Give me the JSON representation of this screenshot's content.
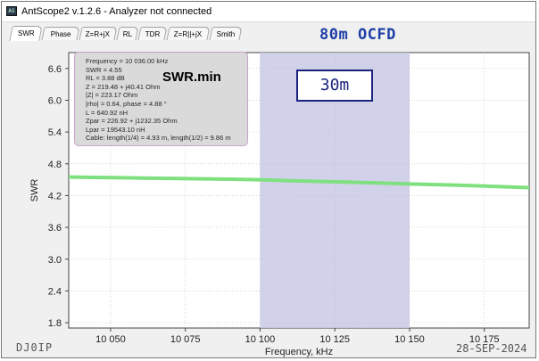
{
  "window": {
    "title": "AntScope2 v.1.2.6 - Analyzer not connected",
    "icon": "app-icon",
    "icon_text": "AS"
  },
  "tabs": [
    {
      "label": "SWR",
      "active": true
    },
    {
      "label": "Phase",
      "active": false
    },
    {
      "label": "Z=R+jX",
      "active": false
    },
    {
      "label": "RL",
      "active": false
    },
    {
      "label": "TDR",
      "active": false
    },
    {
      "label": "Z=R||+jX",
      "active": false
    },
    {
      "label": "Smith",
      "active": false
    }
  ],
  "overlay_title": "80m OCFD",
  "info": {
    "lines": [
      "Frequency = 10 036.00 kHz",
      "SWR = 4.55",
      "RL = 3.88 dB",
      "Z = 219.48 + j40.41 Ohm",
      "|Z| = 223.17 Ohm",
      "|rho| = 0.64, phase = 4.88 °",
      "L = 640.92 nH",
      "Zpar = 226.92 + j1232.35 Ohm",
      "Lpar = 19543.10 nH",
      "Cable: length(1/4) = 4.93 m, length(1/2) = 9.86 m"
    ]
  },
  "swr_min_label": "SWR.min",
  "band_label": "30m",
  "callsign": "DJ0IP",
  "date": "28-SEP-2024",
  "colors": {
    "trace": "#7fe07f",
    "band": "#c9c9e6",
    "band_label": "#1a237e",
    "title": "#1f3fa6"
  },
  "chart_data": {
    "type": "line",
    "xlabel": "Frequency, kHz",
    "ylabel": "SWR",
    "xlim": [
      10036,
      10190
    ],
    "ylim": [
      1.7,
      6.9
    ],
    "xticks": [
      10050,
      10075,
      10100,
      10125,
      10150,
      10175
    ],
    "xtick_labels": [
      "10 050",
      "10 075",
      "10 100",
      "10 125",
      "10 150",
      "10 175"
    ],
    "yticks": [
      1.8,
      2.4,
      3.0,
      3.6,
      4.2,
      4.8,
      5.4,
      6.0,
      6.6
    ],
    "ytick_labels": [
      "1.8",
      "2.4",
      "3.0",
      "3.6",
      "4.2",
      "4.8",
      "5.4",
      "6.0",
      "6.6"
    ],
    "grid": true,
    "band": {
      "from": 10100,
      "to": 10150
    },
    "series": [
      {
        "x": [
          10036,
          10050,
          10060,
          10075,
          10090,
          10100,
          10110,
          10125,
          10140,
          10150,
          10165,
          10175,
          10190
        ],
        "y": [
          4.55,
          4.54,
          4.53,
          4.52,
          4.51,
          4.5,
          4.48,
          4.46,
          4.44,
          4.42,
          4.4,
          4.38,
          4.35
        ]
      }
    ]
  }
}
